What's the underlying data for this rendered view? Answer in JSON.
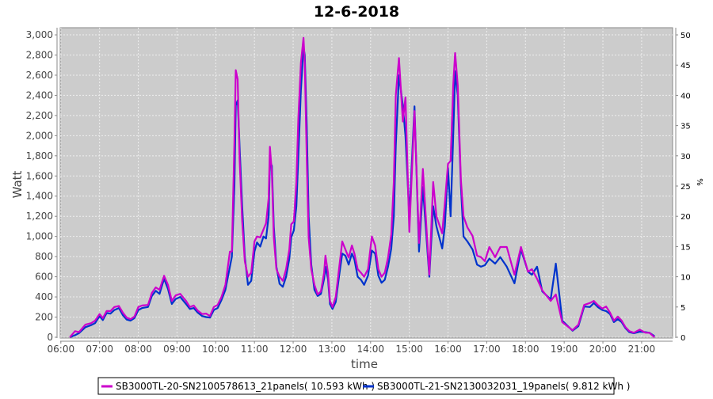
{
  "chart_data": {
    "type": "line",
    "title": "12-6-2018",
    "xlabel": "time",
    "ylabel": "Watt",
    "y2label": "%",
    "xlim": [
      "05:59",
      "21:48"
    ],
    "ylim": [
      -8,
      3071
    ],
    "y2lim": [
      0,
      50
    ],
    "grid": true,
    "legend_position": "bottom",
    "plot_background": "#cccccc",
    "x_ticks": [
      "06:00",
      "07:00",
      "08:00",
      "09:00",
      "10:00",
      "11:00",
      "12:00",
      "13:00",
      "14:00",
      "15:00",
      "16:00",
      "17:00",
      "18:00",
      "19:00",
      "20:00",
      "21:00"
    ],
    "y_ticks": [
      "0",
      "200",
      "400",
      "600",
      "800",
      "1,000",
      "1,200",
      "1,400",
      "1,600",
      "1,800",
      "2,000",
      "2,200",
      "2,400",
      "2,600",
      "2,800",
      "3,000"
    ],
    "y2_ticks": [
      "0",
      "5",
      "10",
      "15",
      "20",
      "25",
      "30",
      "35",
      "40",
      "45",
      "50"
    ],
    "x": [
      "06:14",
      "06:22",
      "06:28",
      "06:38",
      "06:47",
      "06:53",
      "07:00",
      "07:05",
      "07:11",
      "07:17",
      "07:23",
      "07:30",
      "07:36",
      "07:42",
      "07:48",
      "07:54",
      "08:00",
      "08:06",
      "08:15",
      "08:21",
      "08:27",
      "08:33",
      "08:40",
      "08:46",
      "08:52",
      "08:58",
      "09:05",
      "09:14",
      "09:20",
      "09:26",
      "09:32",
      "09:39",
      "09:45",
      "09:51",
      "09:57",
      "10:03",
      "10:09",
      "10:15",
      "10:22",
      "10:25",
      "10:29",
      "10:31",
      "10:34",
      "10:37",
      "10:41",
      "10:45",
      "10:50",
      "10:55",
      "11:00",
      "11:04",
      "11:09",
      "11:14",
      "11:18",
      "11:22",
      "11:24",
      "11:27",
      "11:30",
      "11:34",
      "11:39",
      "11:44",
      "11:49",
      "11:54",
      "11:57",
      "12:01",
      "12:05",
      "12:08",
      "12:12",
      "12:16",
      "12:18",
      "12:21",
      "12:24",
      "12:28",
      "12:33",
      "12:38",
      "12:43",
      "12:48",
      "12:50",
      "12:54",
      "12:57",
      "13:01",
      "13:06",
      "13:11",
      "13:16",
      "13:21",
      "13:26",
      "13:31",
      "13:35",
      "13:40",
      "13:45",
      "13:50",
      "13:56",
      "14:02",
      "14:07",
      "14:12",
      "14:17",
      "14:22",
      "14:27",
      "14:32",
      "14:36",
      "14:39",
      "14:44",
      "14:50",
      "14:54",
      "15:00",
      "15:08",
      "15:15",
      "15:21",
      "15:31",
      "15:37",
      "15:42",
      "15:51",
      "15:55",
      "16:00",
      "16:04",
      "16:08",
      "16:11",
      "16:15",
      "16:20",
      "16:24",
      "16:30",
      "16:38",
      "16:45",
      "16:51",
      "16:57",
      "17:04",
      "17:13",
      "17:21",
      "17:31",
      "17:43",
      "17:53",
      "18:04",
      "18:10",
      "18:18",
      "18:26",
      "18:39",
      "18:47",
      "18:57",
      "19:13",
      "19:22",
      "19:31",
      "19:40",
      "19:46",
      "19:52",
      "19:59",
      "20:05",
      "20:11",
      "20:17",
      "20:23",
      "20:29",
      "20:35",
      "20:41",
      "20:48",
      "20:57",
      "21:06",
      "21:12",
      "21:20"
    ],
    "series": [
      {
        "name": "SB3000TL-20-SN2100578613_21panels( 10.593 kWh )",
        "color": "#cc00cc",
        "values": [
          0,
          60,
          50,
          125,
          140,
          165,
          230,
          190,
          260,
          260,
          300,
          310,
          245,
          195,
          180,
          205,
          300,
          315,
          320,
          440,
          495,
          470,
          610,
          520,
          360,
          415,
          430,
          360,
          300,
          315,
          265,
          230,
          235,
          210,
          300,
          320,
          400,
          520,
          850,
          850,
          1930,
          2650,
          2560,
          1775,
          1150,
          755,
          600,
          640,
          950,
          1000,
          990,
          1070,
          1130,
          1380,
          1890,
          1630,
          990,
          675,
          600,
          560,
          675,
          870,
          1120,
          1150,
          1540,
          2170,
          2720,
          2970,
          2720,
          1775,
          990,
          675,
          520,
          425,
          455,
          640,
          810,
          640,
          360,
          300,
          400,
          675,
          950,
          870,
          790,
          910,
          830,
          675,
          640,
          600,
          675,
          1000,
          910,
          675,
          600,
          640,
          790,
          1020,
          1540,
          2400,
          2770,
          2140,
          2380,
          1045,
          2245,
          935,
          1670,
          620,
          1540,
          1200,
          1030,
          1330,
          1720,
          1750,
          2500,
          2820,
          2500,
          1560,
          1200,
          1090,
          1005,
          810,
          795,
          755,
          895,
          795,
          895,
          895,
          620,
          895,
          650,
          675,
          580,
          465,
          360,
          425,
          150,
          70,
          125,
          320,
          340,
          360,
          320,
          285,
          305,
          245,
          165,
          205,
          165,
          100,
          60,
          45,
          75,
          45,
          45,
          0
        ]
      },
      {
        "name": "SB3000TL-21-SN2130032031_19panels( 9.812 kWh )",
        "color": "#0033cc",
        "values": [
          0,
          20,
          40,
          100,
          120,
          140,
          210,
          170,
          240,
          235,
          270,
          290,
          220,
          175,
          165,
          190,
          270,
          290,
          300,
          410,
          460,
          430,
          580,
          480,
          330,
          380,
          400,
          330,
          280,
          290,
          245,
          210,
          200,
          195,
          270,
          290,
          370,
          470,
          700,
          800,
          1500,
          2300,
          2350,
          1900,
          1300,
          800,
          520,
          560,
          850,
          940,
          900,
          1000,
          980,
          1200,
          1750,
          1700,
          1100,
          700,
          530,
          500,
          600,
          780,
          990,
          1060,
          1300,
          1800,
          2450,
          2880,
          2800,
          2100,
          1200,
          720,
          470,
          410,
          430,
          580,
          700,
          580,
          330,
          280,
          350,
          600,
          830,
          810,
          720,
          830,
          770,
          600,
          570,
          520,
          610,
          860,
          830,
          610,
          540,
          570,
          700,
          880,
          1200,
          1900,
          2600,
          2300,
          2000,
          1200,
          2290,
          850,
          1490,
          600,
          1300,
          1100,
          880,
          1100,
          1680,
          1200,
          2000,
          2640,
          2400,
          1500,
          1000,
          950,
          870,
          720,
          700,
          715,
          780,
          730,
          795,
          700,
          535,
          870,
          650,
          620,
          700,
          455,
          375,
          730,
          165,
          65,
          110,
          305,
          300,
          340,
          300,
          270,
          260,
          230,
          150,
          180,
          150,
          90,
          50,
          40,
          55,
          50,
          45,
          10
        ]
      }
    ]
  }
}
